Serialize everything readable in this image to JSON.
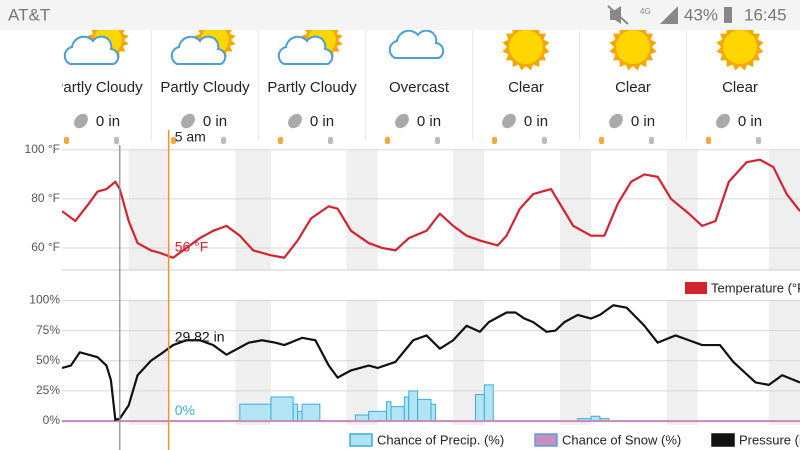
{
  "status_bar": {
    "carrier": "AT&T",
    "battery": "43%",
    "time": "16:45"
  },
  "forecast": [
    {
      "condition": "Partly Cloudy",
      "precip": "0 in",
      "icon": "partly-cloudy"
    },
    {
      "condition": "Partly Cloudy",
      "precip": "0 in",
      "icon": "partly-cloudy"
    },
    {
      "condition": "Partly Cloudy",
      "precip": "0 in",
      "icon": "partly-cloudy"
    },
    {
      "condition": "Overcast",
      "precip": "0 in",
      "icon": "overcast"
    },
    {
      "condition": "Clear",
      "precip": "0 in",
      "icon": "clear"
    },
    {
      "condition": "Clear",
      "precip": "0 in",
      "icon": "clear"
    },
    {
      "condition": "Clear",
      "precip": "0 in",
      "icon": "clear"
    }
  ],
  "cursor": {
    "label": "5 am",
    "x": 24,
    "color": "#f5922f"
  },
  "now_x": 13,
  "chart_data": [
    {
      "type": "line",
      "xlim": [
        0,
        166
      ],
      "ylim": [
        51,
        102
      ],
      "yticks": [
        {
          "value": 60,
          "label": "60 °F"
        },
        {
          "value": 80,
          "label": "80 °F"
        },
        {
          "value": 100,
          "label": "100 °F"
        }
      ],
      "grid": true,
      "legend": "right",
      "bands": [
        [
          15,
          24
        ],
        [
          39,
          47
        ],
        [
          64,
          71
        ],
        [
          88,
          95
        ],
        [
          112,
          119
        ],
        [
          136,
          143
        ],
        [
          159,
          166
        ]
      ],
      "series": [
        {
          "name": "Temperature (°F)",
          "color": "#d32230",
          "style": "line",
          "x": [
            0,
            3,
            6,
            8,
            10,
            12,
            13,
            15,
            17,
            20,
            22,
            25,
            28,
            31,
            34,
            37,
            40,
            43,
            47,
            50,
            53,
            56,
            60,
            62,
            65,
            69,
            72,
            75,
            78,
            82,
            85,
            88,
            91,
            94,
            98,
            100,
            103,
            106,
            110,
            112,
            115,
            119,
            122,
            125,
            128,
            131,
            134,
            137,
            141,
            144,
            147,
            150,
            154,
            157,
            160,
            163,
            166
          ],
          "values": [
            75,
            71,
            78,
            83,
            84,
            87,
            84,
            71,
            62,
            59,
            58,
            56,
            60,
            64,
            67,
            69,
            65,
            59,
            57,
            56,
            63,
            72,
            77,
            76,
            67,
            62,
            60,
            59,
            64,
            67,
            74,
            69,
            65,
            63,
            61,
            65,
            76,
            82,
            84,
            78,
            69,
            65,
            65,
            78,
            87,
            90,
            89,
            80,
            74,
            69,
            71,
            87,
            95,
            96,
            93,
            82,
            75
          ]
        }
      ],
      "annotations": [
        {
          "label": "56 °F",
          "x": 24,
          "y": 60,
          "series": 0
        }
      ]
    },
    {
      "type": "line",
      "xlim": [
        0,
        166
      ],
      "ylim": [
        -24,
        107
      ],
      "yticks": [
        {
          "value": 0,
          "label": "0%"
        },
        {
          "value": 25,
          "label": "25%"
        },
        {
          "value": 50,
          "label": "50%"
        },
        {
          "value": 75,
          "label": "75%"
        },
        {
          "value": 100,
          "label": "100%"
        }
      ],
      "grid": true,
      "legend": "bottom",
      "bands": [
        [
          15,
          24
        ],
        [
          39,
          47
        ],
        [
          64,
          71
        ],
        [
          88,
          95
        ],
        [
          112,
          119
        ],
        [
          136,
          143
        ],
        [
          159,
          166
        ]
      ],
      "series": [
        {
          "name": "Chance of Precip. (%)",
          "color": "#3aaed8",
          "fill": "#b3e4f4",
          "style": "step-area",
          "x": [
            0,
            40,
            47,
            52,
            53,
            54,
            58,
            66,
            69,
            73,
            74,
            77,
            78,
            80,
            83,
            84,
            93,
            95,
            97,
            116,
            119,
            121,
            123,
            166
          ],
          "values": [
            0,
            14,
            20,
            14,
            8,
            14,
            0,
            5,
            8,
            16,
            12,
            20,
            25,
            18,
            14,
            0,
            22,
            30,
            0,
            2,
            4,
            2,
            0,
            0
          ]
        },
        {
          "name": "Chance of Snow (%)",
          "color": "#5aa0e0",
          "fill": "#c98fc0",
          "style": "line",
          "x": [
            0,
            166
          ],
          "values": [
            0,
            0
          ]
        },
        {
          "name": "Pressure (in)",
          "color": "#111111",
          "style": "line",
          "x": [
            0,
            2,
            4,
            6,
            8,
            10,
            11,
            12,
            13,
            15,
            17,
            20,
            22,
            25,
            28,
            31,
            34,
            37,
            39,
            42,
            45,
            48,
            50,
            54,
            57,
            60,
            62,
            65,
            69,
            71,
            75,
            79,
            82,
            85,
            88,
            91,
            94,
            96,
            100,
            102,
            104,
            106,
            109,
            111,
            113,
            116,
            119,
            121,
            124,
            127,
            131,
            134,
            138,
            141,
            144,
            148,
            151,
            156,
            159,
            162,
            166
          ],
          "values": [
            44,
            46,
            57,
            55,
            53,
            46,
            34,
            1,
            2,
            13,
            38,
            50,
            55,
            63,
            67,
            67,
            63,
            55,
            59,
            65,
            67,
            65,
            63,
            69,
            67,
            46,
            36,
            42,
            46,
            44,
            49,
            67,
            71,
            60,
            67,
            79,
            74,
            82,
            90,
            90,
            85,
            82,
            74,
            75,
            82,
            88,
            85,
            88,
            96,
            94,
            79,
            65,
            71,
            67,
            63,
            63,
            49,
            32,
            30,
            38,
            32
          ]
        }
      ],
      "annotations": [
        {
          "label": "29.82 in",
          "x": 24,
          "y": 69,
          "series": 2
        },
        {
          "label": "0%",
          "x": 24,
          "y": 8,
          "series": 0
        }
      ]
    }
  ]
}
